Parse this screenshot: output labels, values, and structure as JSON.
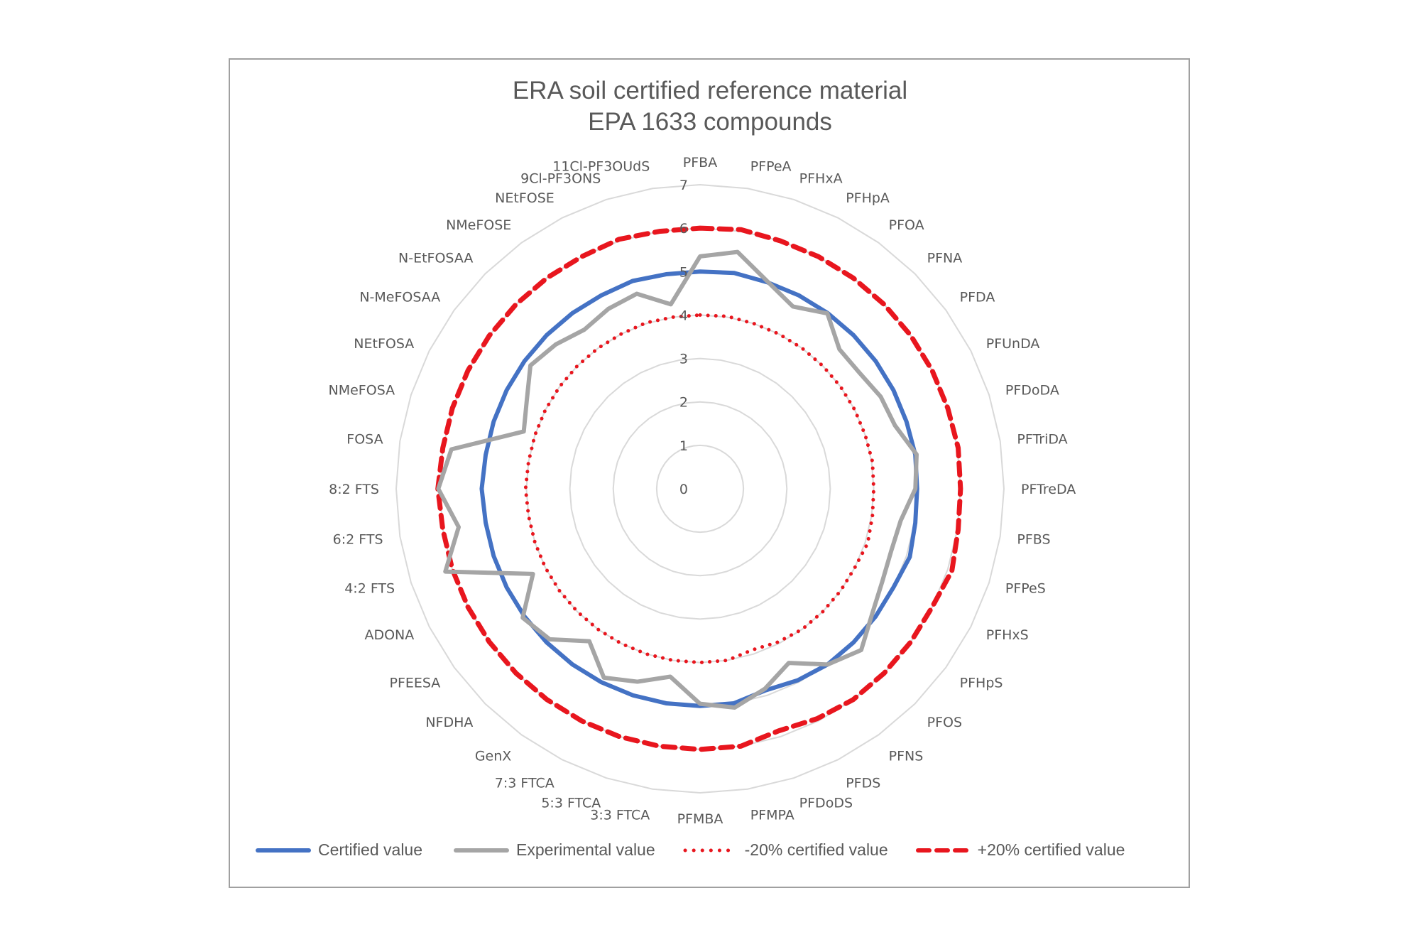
{
  "chart": {
    "title_line1": "ERA soil certified reference material",
    "title_line2": "EPA 1633 compounds"
  },
  "legend": {
    "items": [
      {
        "label": "Certified value",
        "color": "#4472C4",
        "style": "solid"
      },
      {
        "label": "Experimental value",
        "color": "#A5A5A5",
        "style": "solid"
      },
      {
        "label": "-20% certified value",
        "color": "#E8161E",
        "style": "dotted"
      },
      {
        "label": "+20% certified value",
        "color": "#E8161E",
        "style": "dashed"
      }
    ]
  },
  "colors": {
    "certified": "#4472C4",
    "experimental": "#A5A5A5",
    "limits": "#E8161E",
    "grid": "#D9D9D9",
    "text": "#595959",
    "frame": "#A0A0A0"
  },
  "chart_data": {
    "type": "radar",
    "title": "ERA soil certified reference material\nEPA 1633 compounds",
    "categories": [
      "PFBA",
      "PFPeA",
      "PFHxA",
      "PFHpA",
      "PFOA",
      "PFNA",
      "PFDA",
      "PFUnDA",
      "PFDoDA",
      "PFTriDA",
      "PFTreDA",
      "PFBS",
      "PFPeS",
      "PFHxS",
      "PFHpS",
      "PFOS",
      "PFNS",
      "PFDS",
      "PFDoDS",
      "PFMPA",
      "PFMBA",
      "3:3 FTCA",
      "5:3 FTCA",
      "7:3 FTCA",
      "GenX",
      "NFDHA",
      "PFEESA",
      "ADONA",
      "4:2 FTS",
      "6:2 FTS",
      "8:2 FTS",
      "FOSA",
      "NMeFOSA",
      "NEtFOSA",
      "N-MeFOSAA",
      "N-EtFOSAA",
      "NMeFOSE",
      "NEtFOSE",
      "9Cl-PF3ONS",
      "11Cl-PF3OUdS"
    ],
    "series": [
      {
        "name": "Certified value",
        "color": "#4472C4",
        "style": "solid",
        "values": [
          5.0,
          5.03,
          5.0,
          5.0,
          5.0,
          5.0,
          5.0,
          5.0,
          5.0,
          5.02,
          5.0,
          5.02,
          5.08,
          5.0,
          5.0,
          5.0,
          5.0,
          4.95,
          4.88,
          5.0,
          5.0,
          5.0,
          5.0,
          5.0,
          5.0,
          5.0,
          5.0,
          5.0,
          5.0,
          5.0,
          5.03,
          5.0,
          5.0,
          5.0,
          5.0,
          5.0,
          5.0,
          5.0,
          5.03,
          5.0
        ]
      },
      {
        "name": "Experimental value",
        "color": "#A5A5A5",
        "style": "solid",
        "values": [
          5.35,
          5.52,
          5.02,
          4.71,
          4.99,
          4.54,
          4.54,
          4.67,
          4.72,
          5.05,
          4.96,
          4.68,
          4.63,
          4.71,
          4.9,
          5.25,
          5.0,
          4.5,
          4.84,
          5.1,
          4.95,
          4.38,
          4.67,
          4.88,
          4.34,
          4.9,
          5.05,
          4.32,
          6.17,
          5.63,
          6.03,
          5.8,
          4.27,
          4.48,
          4.83,
          4.7,
          4.53,
          4.65,
          4.72,
          4.3
        ]
      },
      {
        "name": "-20% certified value",
        "color": "#E8161E",
        "style": "dotted",
        "values": [
          4.0,
          4.02,
          4.0,
          4.0,
          4.0,
          4.0,
          4.0,
          4.0,
          4.0,
          4.02,
          4.0,
          4.02,
          4.06,
          4.0,
          4.0,
          4.0,
          4.0,
          3.96,
          3.9,
          4.0,
          4.0,
          4.0,
          4.0,
          4.0,
          4.0,
          4.0,
          4.0,
          4.0,
          4.0,
          4.0,
          4.02,
          4.0,
          4.0,
          4.0,
          4.0,
          4.0,
          4.0,
          4.0,
          4.02,
          4.0
        ]
      },
      {
        "name": "+20% certified value",
        "color": "#E8161E",
        "style": "dashed",
        "values": [
          6.0,
          6.04,
          6.0,
          6.0,
          6.0,
          6.0,
          6.0,
          6.0,
          6.0,
          6.02,
          6.0,
          6.02,
          6.1,
          6.0,
          6.0,
          6.0,
          6.0,
          5.94,
          5.86,
          6.0,
          6.0,
          6.0,
          6.0,
          6.0,
          6.0,
          6.0,
          6.0,
          6.0,
          6.0,
          6.0,
          6.04,
          6.0,
          6.0,
          6.0,
          6.0,
          6.0,
          6.0,
          6.0,
          6.04,
          6.0
        ]
      }
    ],
    "radial_ticks": [
      "0",
      "1",
      "2",
      "3",
      "4",
      "5",
      "6",
      "7"
    ],
    "rlim": [
      0,
      7
    ],
    "grid": true,
    "legend_position": "bottom"
  }
}
